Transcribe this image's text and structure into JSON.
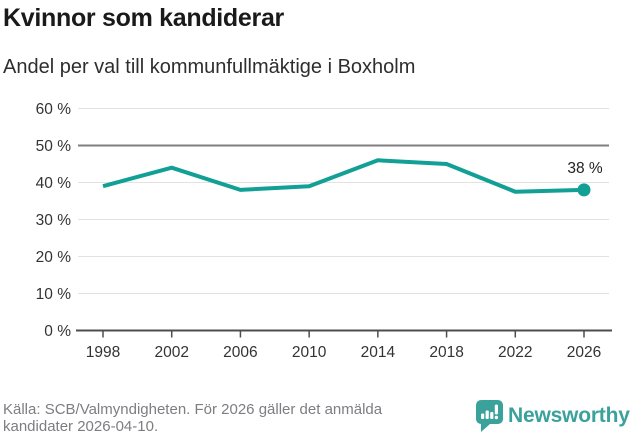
{
  "title": "Kvinnor som kandiderar",
  "subtitle": "Andel per val till kommunfullmäktige i Boxholm",
  "colors": {
    "line": "#12a096",
    "grid": "#e2e2e2",
    "reference_line": "#7f7f7f",
    "axis": "#4d4d4d",
    "text_axis": "#333333",
    "text_dark": "#222222",
    "brand": "#3aa29b"
  },
  "chart_data": {
    "type": "line",
    "title": "Kvinnor som kandiderar",
    "subtitle": "Andel per val till kommunfullmäktige i Boxholm",
    "x": [
      1998,
      2002,
      2006,
      2010,
      2014,
      2018,
      2022,
      2026
    ],
    "xtick_labels": [
      "1998",
      "2002",
      "2006",
      "2010",
      "2014",
      "2018",
      "2022",
      "2026"
    ],
    "series": [
      {
        "values": [
          39,
          44,
          38,
          39,
          46,
          45,
          37.5,
          38
        ]
      }
    ],
    "ylim": [
      0,
      60
    ],
    "ytick_step": 10,
    "ytick_labels": [
      "0 %",
      "10 %",
      "20 %",
      "30 %",
      "40 %",
      "50 %",
      "60 %"
    ],
    "reference_line": 50,
    "grid": true,
    "legend": "none",
    "end_label": "38 %"
  },
  "footer": {
    "source_line1": "Källa: SCB/Valmyndigheten. För 2026 gäller det anmälda",
    "source_line2": "kandidater 2026-04-10.",
    "brand_name": "Newsworthy",
    "brand_icon": "bar-chart-speech-bubble-icon"
  }
}
